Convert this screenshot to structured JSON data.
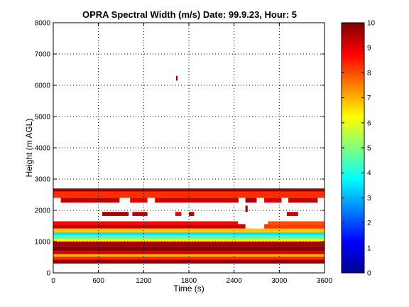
{
  "chart_data": {
    "type": "heatmap",
    "title": "OPRA Spectral Width (m/s)  Date: 99.9.23, Hour: 5",
    "xlabel": "Time (s)",
    "ylabel": "Height (m AGL)",
    "xlim": [
      0,
      3600
    ],
    "ylim": [
      0,
      8000
    ],
    "x_ticks": [
      "0",
      "600",
      "1200",
      "1800",
      "2400",
      "3000",
      "3600"
    ],
    "y_ticks": [
      "0",
      "1000",
      "2000",
      "3000",
      "4000",
      "5000",
      "6000",
      "7000",
      "8000"
    ],
    "grid": true,
    "colorbar": {
      "range": [
        0,
        10
      ],
      "ticks": [
        "0",
        "1",
        "2",
        "3",
        "4",
        "5",
        "6",
        "7",
        "8",
        "9",
        "10"
      ],
      "colormap": "jet"
    },
    "layers": [
      {
        "t_start": 0,
        "t_end": 3600,
        "h_start": 300,
        "h_end": 420,
        "value": 9.8
      },
      {
        "t_start": 0,
        "t_end": 3600,
        "h_start": 420,
        "h_end": 520,
        "value": 8.4
      },
      {
        "t_start": 0,
        "t_end": 3600,
        "h_start": 520,
        "h_end": 600,
        "value": 7.0
      },
      {
        "t_start": 0,
        "t_end": 3600,
        "h_start": 600,
        "h_end": 700,
        "value": 9.2
      },
      {
        "t_start": 0,
        "t_end": 3600,
        "h_start": 700,
        "h_end": 860,
        "value": 9.9
      },
      {
        "t_start": 0,
        "t_end": 3600,
        "h_start": 860,
        "h_end": 1000,
        "value": 9.6
      },
      {
        "t_start": 0,
        "t_end": 3600,
        "h_start": 1000,
        "h_end": 1100,
        "value": 6.4
      },
      {
        "t_start": 0,
        "t_end": 3600,
        "h_start": 1100,
        "h_end": 1200,
        "value": 4.5
      },
      {
        "t_start": 0,
        "t_end": 3600,
        "h_start": 1200,
        "h_end": 1300,
        "value": 3.5
      },
      {
        "t_start": 0,
        "t_end": 3600,
        "h_start": 1300,
        "h_end": 1420,
        "value": 6.8
      },
      {
        "t_start": 0,
        "t_end": 2550,
        "h_start": 1420,
        "h_end": 1560,
        "value": 9.3
      },
      {
        "t_start": 2800,
        "t_end": 3600,
        "h_start": 1420,
        "h_end": 1560,
        "value": 8.2
      },
      {
        "t_start": 0,
        "t_end": 2450,
        "h_start": 1560,
        "h_end": 1650,
        "value": 8.7
      },
      {
        "t_start": 2850,
        "t_end": 3600,
        "h_start": 1560,
        "h_end": 1650,
        "value": 8.0
      },
      {
        "t_start": 650,
        "t_end": 1000,
        "h_start": 1820,
        "h_end": 1950,
        "value": 9.6
      },
      {
        "t_start": 1050,
        "t_end": 1250,
        "h_start": 1820,
        "h_end": 1950,
        "value": 9.4
      },
      {
        "t_start": 1620,
        "t_end": 1700,
        "h_start": 1820,
        "h_end": 1950,
        "value": 9.0
      },
      {
        "t_start": 1800,
        "t_end": 1870,
        "h_start": 1820,
        "h_end": 1950,
        "value": 9.5
      },
      {
        "t_start": 3100,
        "t_end": 3250,
        "h_start": 1820,
        "h_end": 1950,
        "value": 9.3
      },
      {
        "t_start": 2550,
        "t_end": 2580,
        "h_start": 1950,
        "h_end": 2150,
        "value": 9.8
      },
      {
        "t_start": 100,
        "t_end": 880,
        "h_start": 2250,
        "h_end": 2400,
        "value": 9.4
      },
      {
        "t_start": 1020,
        "t_end": 1250,
        "h_start": 2250,
        "h_end": 2400,
        "value": 9.0
      },
      {
        "t_start": 1350,
        "t_end": 2460,
        "h_start": 2250,
        "h_end": 2400,
        "value": 9.3
      },
      {
        "t_start": 2550,
        "t_end": 2700,
        "h_start": 2250,
        "h_end": 2400,
        "value": 9.6
      },
      {
        "t_start": 2800,
        "t_end": 3030,
        "h_start": 2250,
        "h_end": 2400,
        "value": 9.1
      },
      {
        "t_start": 3120,
        "t_end": 3510,
        "h_start": 2250,
        "h_end": 2400,
        "value": 9.4
      },
      {
        "t_start": 0,
        "t_end": 3600,
        "h_start": 2400,
        "h_end": 2600,
        "value": 8.3
      },
      {
        "t_start": 0,
        "t_end": 3600,
        "h_start": 2600,
        "h_end": 2700,
        "value": 9.7
      },
      {
        "t_start": 1630,
        "t_end": 1650,
        "h_start": 6150,
        "h_end": 6300,
        "value": 9.8
      }
    ]
  }
}
